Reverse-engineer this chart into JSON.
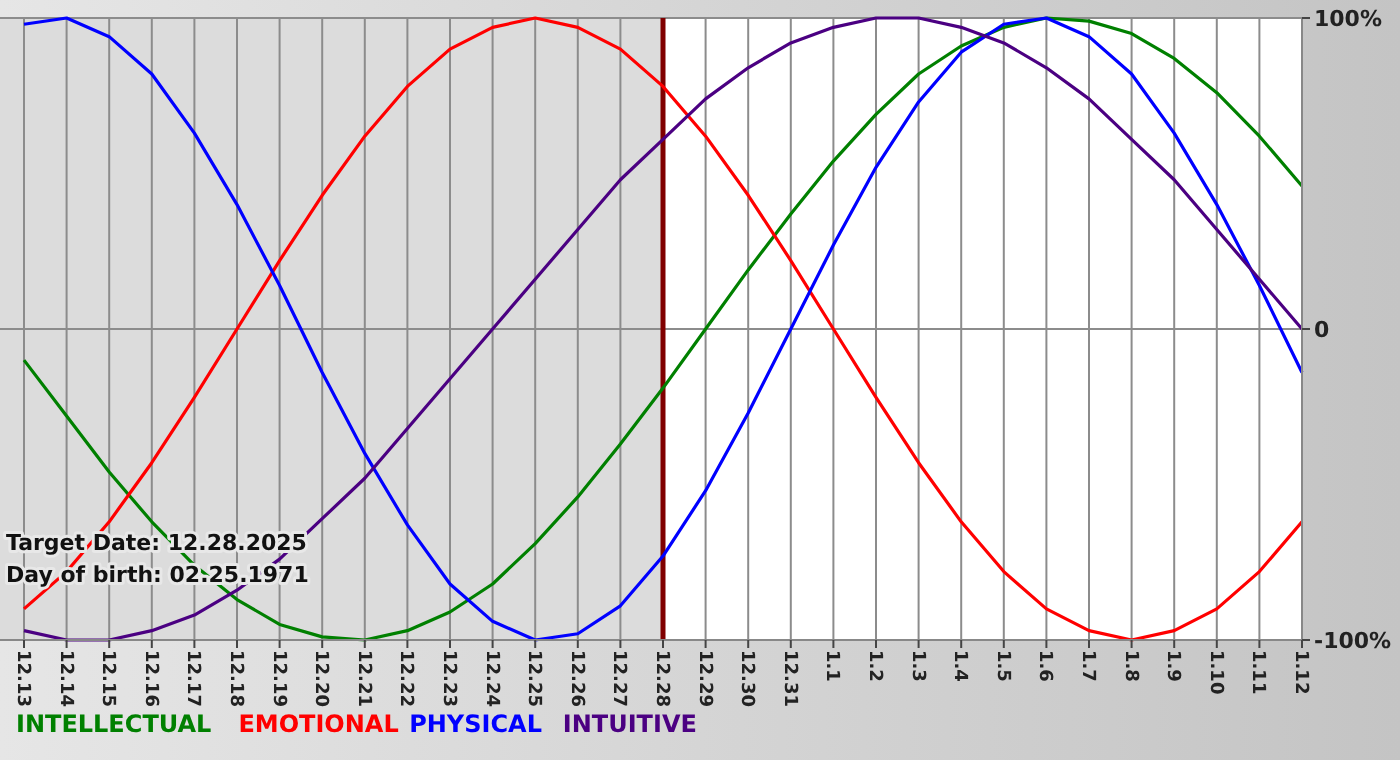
{
  "chart_data": {
    "type": "line",
    "categories": [
      "12.13",
      "12.14",
      "12.15",
      "12.16",
      "12.17",
      "12.18",
      "12.19",
      "12.20",
      "12.21",
      "12.22",
      "12.23",
      "12.24",
      "12.25",
      "12.26",
      "12.27",
      "12.28",
      "12.29",
      "12.30",
      "12.31",
      "1.1",
      "1.2",
      "1.3",
      "1.4",
      "1.5",
      "1.6",
      "1.7",
      "1.8",
      "1.9",
      "1.10",
      "1.11",
      "1.12"
    ],
    "series": [
      {
        "name": "INTELLECTUAL",
        "color": "#008000",
        "values": [
          -10,
          -28,
          -46,
          -62,
          -76,
          -87,
          -95,
          -99,
          -100,
          -97,
          -91,
          -82,
          -69,
          -54,
          -37,
          -19,
          0,
          19,
          37,
          54,
          69,
          82,
          91,
          97,
          100,
          99,
          95,
          87,
          76,
          62,
          46
        ]
      },
      {
        "name": "EMOTIONAL",
        "color": "#ff0000",
        "values": [
          -90,
          -78,
          -62,
          -43,
          -22,
          0,
          22,
          43,
          62,
          78,
          90,
          97,
          100,
          97,
          90,
          78,
          62,
          43,
          22,
          0,
          -22,
          -43,
          -62,
          -78,
          -90,
          -97,
          -100,
          -97,
          -90,
          -78,
          -62
        ]
      },
      {
        "name": "PHYSICAL",
        "color": "#0000ff",
        "values": [
          98,
          100,
          94,
          82,
          63,
          40,
          14,
          -14,
          -40,
          -63,
          -82,
          -94,
          -100,
          -98,
          -89,
          -73,
          -52,
          -27,
          0,
          27,
          52,
          73,
          89,
          98,
          100,
          94,
          82,
          63,
          40,
          14,
          -14
        ]
      },
      {
        "name": "INTUITIVE",
        "color": "#4b0082",
        "values": [
          -97,
          -100,
          -100,
          -97,
          -92,
          -84,
          -74,
          -61,
          -48,
          -32,
          -16,
          0,
          16,
          32,
          48,
          61,
          74,
          84,
          92,
          97,
          100,
          100,
          97,
          92,
          84,
          74,
          61,
          48,
          32,
          16,
          0
        ]
      }
    ],
    "ylim": [
      -100,
      100
    ],
    "yticks": [
      {
        "value": 100,
        "label": "100%"
      },
      0,
      {
        "value": -100,
        "label": "-100%"
      }
    ],
    "ref_lines": [
      {
        "axis": "x",
        "value": "12.28",
        "color": "#800000"
      }
    ],
    "bands": [
      {
        "axis": "x",
        "from": "12.13",
        "to": "12.28",
        "color": "#dcdcdc"
      }
    ],
    "annotations": [
      "Target Date: 12.28.2025",
      "Day of birth: 02.25.1971"
    ],
    "grid": true,
    "legend": "bottom",
    "marker": "none",
    "line_style": "solid"
  }
}
